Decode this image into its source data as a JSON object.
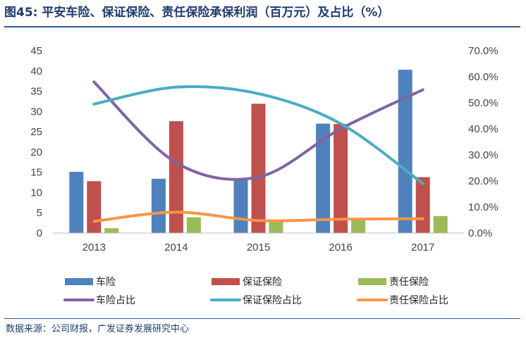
{
  "header": {
    "title_label": "图45:",
    "title_text": "平安车险、保证保险、责任保险承保利润（百万元）及占比（%）"
  },
  "footer": {
    "source": "数据来源：公司财报，广发证券发展研究中心"
  },
  "chart_data": {
    "type": "bar",
    "title": "平安车险、保证保险、责任保险承保利润（百万元）及占比（%）",
    "categories": [
      "2013",
      "2014",
      "2015",
      "2016",
      "2017"
    ],
    "left_axis": {
      "ylim": [
        0,
        45
      ],
      "ticks": [
        0,
        5,
        10,
        15,
        20,
        25,
        30,
        35,
        40,
        45
      ]
    },
    "right_axis": {
      "ylim": [
        0,
        70
      ],
      "ticks": [
        "0.0%",
        "10.0%",
        "20.0%",
        "30.0%",
        "40.0%",
        "50.0%",
        "60.0%",
        "70.0%"
      ]
    },
    "bar_series": [
      {
        "name": "车险",
        "color": "#4f81bd",
        "values": [
          15.1,
          13.4,
          13.2,
          27.0,
          40.3
        ]
      },
      {
        "name": "保证保险",
        "color": "#c0504d",
        "values": [
          12.8,
          27.6,
          31.9,
          26.9,
          13.8
        ]
      },
      {
        "name": "责任保险",
        "color": "#9bbb59",
        "values": [
          1.2,
          3.9,
          3.0,
          3.4,
          4.2
        ]
      }
    ],
    "line_series": [
      {
        "name": "车险占比",
        "color": "#8064a2",
        "values": [
          58.0,
          27.0,
          21.5,
          40.0,
          55.0
        ]
      },
      {
        "name": "保证保险占比",
        "color": "#4bacc6",
        "values": [
          49.5,
          56.0,
          53.5,
          42.0,
          19.0
        ]
      },
      {
        "name": "责任保险占比",
        "color": "#f79646",
        "values": [
          4.5,
          8.0,
          4.8,
          5.3,
          5.5
        ]
      }
    ],
    "legend_position": "bottom",
    "grid": false
  }
}
